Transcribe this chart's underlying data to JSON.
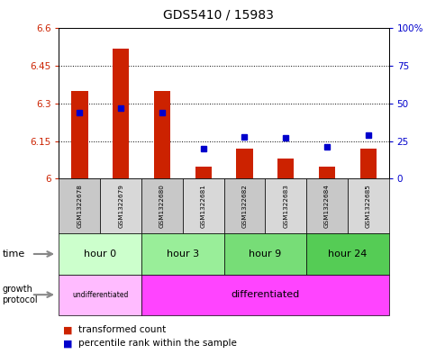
{
  "title": "GDS5410 / 15983",
  "samples": [
    "GSM1322678",
    "GSM1322679",
    "GSM1322680",
    "GSM1322681",
    "GSM1322682",
    "GSM1322683",
    "GSM1322684",
    "GSM1322685"
  ],
  "transformed_count": [
    6.35,
    6.52,
    6.35,
    6.05,
    6.12,
    6.08,
    6.05,
    6.12
  ],
  "transformed_count_base": 6.0,
  "percentile_rank": [
    44,
    47,
    44,
    20,
    28,
    27,
    21,
    29
  ],
  "ylim_left": [
    6.0,
    6.6
  ],
  "ylim_right": [
    0,
    100
  ],
  "yticks_left": [
    6.0,
    6.15,
    6.3,
    6.45,
    6.6
  ],
  "yticks_right": [
    0,
    25,
    50,
    75,
    100
  ],
  "ytick_labels_left": [
    "6",
    "6.15",
    "6.3",
    "6.45",
    "6.6"
  ],
  "ytick_labels_right": [
    "0",
    "25",
    "50",
    "75",
    "100%"
  ],
  "time_groups": [
    {
      "label": "hour 0",
      "start": 0,
      "end": 2,
      "color": "#ccffcc"
    },
    {
      "label": "hour 3",
      "start": 2,
      "end": 4,
      "color": "#99ee99"
    },
    {
      "label": "hour 9",
      "start": 4,
      "end": 6,
      "color": "#77dd77"
    },
    {
      "label": "hour 24",
      "start": 6,
      "end": 8,
      "color": "#55cc55"
    }
  ],
  "growth_undiff": {
    "label": "undifferentiated",
    "start": 0,
    "end": 2,
    "color": "#ffbbff"
  },
  "growth_diff": {
    "label": "differentiated",
    "start": 2,
    "end": 8,
    "color": "#ff44ff"
  },
  "bar_color": "#cc2200",
  "dot_color": "#0000cc",
  "bg_color": "#ffffff",
  "sample_bg_even": "#c8c8c8",
  "sample_bg_odd": "#d8d8d8",
  "left_axis_color": "#cc2200",
  "right_axis_color": "#0000cc",
  "n_samples": 8
}
